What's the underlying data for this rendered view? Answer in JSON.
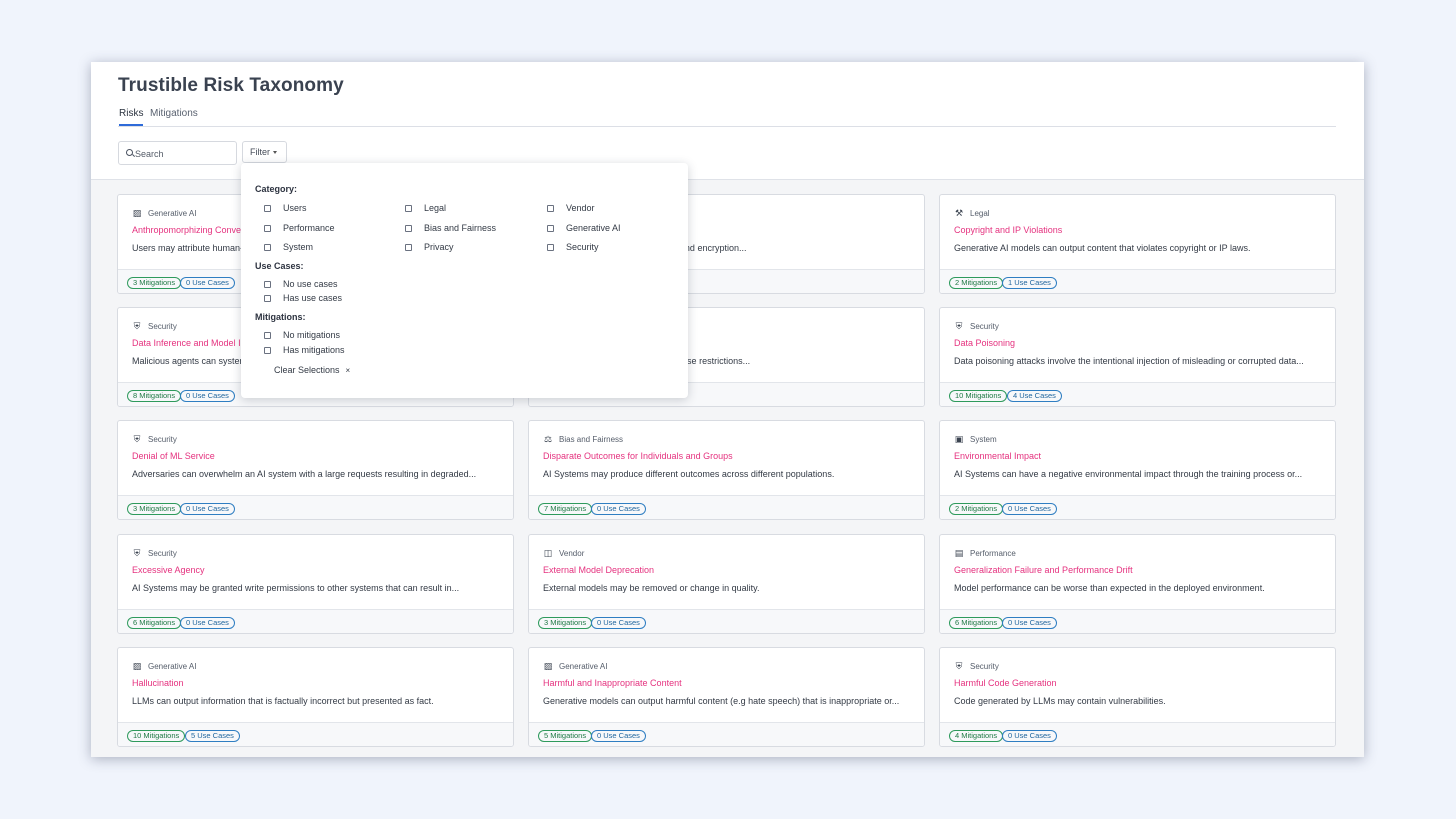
{
  "page": {
    "title": "Trustible Risk Taxonomy"
  },
  "tabs": [
    {
      "label": "Risks",
      "active": true
    },
    {
      "label": "Mitigations",
      "active": false
    }
  ],
  "search": {
    "placeholder": "Search"
  },
  "filter": {
    "button_label": "Filter",
    "category_label": "Category:",
    "categories": [
      "Users",
      "Performance",
      "System",
      "Legal",
      "Bias and Fairness",
      "Privacy",
      "Vendor",
      "Generative AI",
      "Security"
    ],
    "use_cases_label": "Use Cases:",
    "use_case_options": [
      "No use cases",
      "Has use cases"
    ],
    "mitigations_label": "Mitigations:",
    "mitigation_options": [
      "No mitigations",
      "Has mitigations"
    ],
    "clear_label": "Clear Selections",
    "clear_icon": "×"
  },
  "cards": [
    {
      "category": "Generative AI",
      "icon": "robot-icon",
      "title": "Anthropomorphizing Conve",
      "desc": "Users may attribute human-",
      "mitigations": "3 Mitigations",
      "use_cases": "0 Use Cases"
    },
    {
      "category": "",
      "icon": "",
      "title": "",
      "desc": "e stolen due to ineffective storage and encryption...",
      "mitigations": "",
      "use_cases": ""
    },
    {
      "category": "Legal",
      "icon": "gavel-icon",
      "title": "Copyright and IP Violations",
      "desc": "Generative AI models can output content that violates copyright or IP laws.",
      "mitigations": "2 Mitigations",
      "use_cases": "1 Use Cases"
    },
    {
      "category": "Security",
      "icon": "shield-icon",
      "title": "Data Inference and Model In",
      "desc": "Malicious agents can system",
      "mitigations": "8 Mitigations",
      "use_cases": "0 Use Cases"
    },
    {
      "category": "",
      "icon": "",
      "title": "",
      "desc": "concerns including commercial license restrictions...",
      "mitigations": "",
      "use_cases": ""
    },
    {
      "category": "Security",
      "icon": "shield-icon",
      "title": "Data Poisoning",
      "desc": "Data poisoning attacks involve the intentional injection of misleading or corrupted data...",
      "mitigations": "10 Mitigations",
      "use_cases": "4 Use Cases"
    },
    {
      "category": "Security",
      "icon": "shield-icon",
      "title": "Denial of ML Service",
      "desc": "Adversaries can overwhelm an AI system with a large requests resulting in degraded...",
      "mitigations": "3 Mitigations",
      "use_cases": "0 Use Cases"
    },
    {
      "category": "Bias and Fairness",
      "icon": "scale-icon",
      "title": "Disparate Outcomes for Individuals and Groups",
      "desc": "AI Systems may produce different outcomes across different populations.",
      "mitigations": "7 Mitigations",
      "use_cases": "0 Use Cases"
    },
    {
      "category": "System",
      "icon": "monitor-icon",
      "title": "Environmental Impact",
      "desc": "AI Systems can have a negative environmental impact through the training process or...",
      "mitigations": "2 Mitigations",
      "use_cases": "0 Use Cases"
    },
    {
      "category": "Security",
      "icon": "shield-icon",
      "title": "Excessive Agency",
      "desc": "AI Systems may be granted write permissions to other systems that can result in...",
      "mitigations": "6 Mitigations",
      "use_cases": "0 Use Cases"
    },
    {
      "category": "Vendor",
      "icon": "briefcase-icon",
      "title": "External Model Deprecation",
      "desc": "External models may be removed or change in quality.",
      "mitigations": "3 Mitigations",
      "use_cases": "0 Use Cases"
    },
    {
      "category": "Performance",
      "icon": "clipboard-icon",
      "title": "Generalization Failure and Performance Drift",
      "desc": "Model performance can be worse than expected in the deployed environment.",
      "mitigations": "6 Mitigations",
      "use_cases": "0 Use Cases"
    },
    {
      "category": "Generative AI",
      "icon": "robot-icon",
      "title": "Hallucination",
      "desc": "LLMs can output information that is factually incorrect but presented as fact.",
      "mitigations": "10 Mitigations",
      "use_cases": "5 Use Cases"
    },
    {
      "category": "Generative AI",
      "icon": "robot-icon",
      "title": "Harmful and Inappropriate Content",
      "desc": "Generative models can output harmful content (e.g hate speech) that is inappropriate or...",
      "mitigations": "5 Mitigations",
      "use_cases": "0 Use Cases"
    },
    {
      "category": "Security",
      "icon": "shield-icon",
      "title": "Harmful Code Generation",
      "desc": "Code generated by LLMs may contain vulnerabilities.",
      "mitigations": "4 Mitigations",
      "use_cases": "0 Use Cases"
    }
  ],
  "colors": {
    "accent_pink": "#e5327f",
    "tab_active": "#2e6bd9",
    "badge_green": "#2e9a5c",
    "badge_blue": "#2f7ec2"
  }
}
